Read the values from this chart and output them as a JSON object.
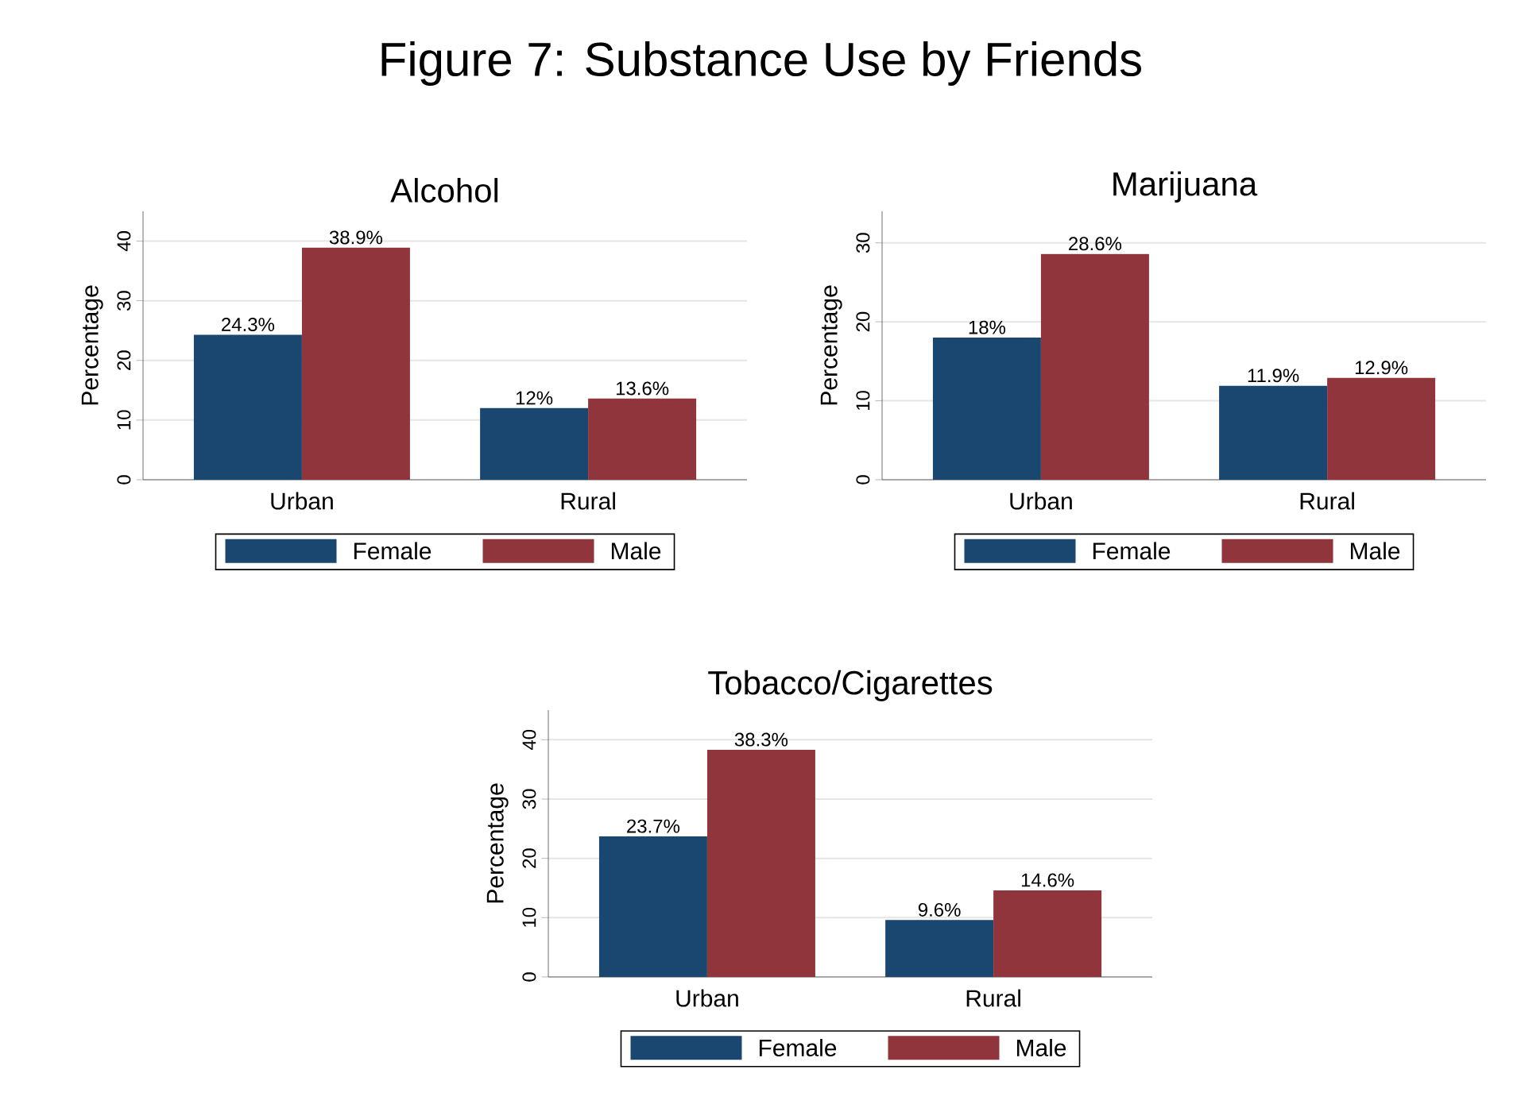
{
  "chart_data": [
    {
      "type": "other",
      "title": "Figure 7: Substance Use by Friends"
    },
    {
      "type": "bar",
      "title": "Alcohol",
      "ylabel": "Percentage",
      "categories": [
        "Urban",
        "Rural"
      ],
      "series": [
        {
          "name": "Female",
          "color": "#1a476f",
          "values": [
            24.3,
            12
          ],
          "value_labels": [
            "24.3%",
            "12%"
          ]
        },
        {
          "name": "Male",
          "color": "#90353b",
          "values": [
            38.9,
            13.6
          ],
          "value_labels": [
            "38.9%",
            "13.6%"
          ]
        }
      ],
      "ylim": [
        0,
        45
      ],
      "yticks": [
        0,
        10,
        20,
        30,
        40
      ],
      "grid": "y",
      "legend": "bottom"
    },
    {
      "type": "bar",
      "title": "Marijuana",
      "ylabel": "Percentage",
      "categories": [
        "Urban",
        "Rural"
      ],
      "series": [
        {
          "name": "Female",
          "color": "#1a476f",
          "values": [
            18,
            11.9
          ],
          "value_labels": [
            "18%",
            "11.9%"
          ]
        },
        {
          "name": "Male",
          "color": "#90353b",
          "values": [
            28.6,
            12.9
          ],
          "value_labels": [
            "28.6%",
            "12.9%"
          ]
        }
      ],
      "ylim": [
        0,
        34
      ],
      "yticks": [
        0,
        10,
        20,
        30
      ],
      "grid": "y",
      "legend": "bottom"
    },
    {
      "type": "bar",
      "title": "Tobacco/Cigarettes",
      "ylabel": "Percentage",
      "categories": [
        "Urban",
        "Rural"
      ],
      "series": [
        {
          "name": "Female",
          "color": "#1a476f",
          "values": [
            23.7,
            9.6
          ],
          "value_labels": [
            "23.7%",
            "9.6%"
          ]
        },
        {
          "name": "Male",
          "color": "#90353b",
          "values": [
            38.3,
            14.6
          ],
          "value_labels": [
            "38.3%",
            "14.6%"
          ]
        }
      ],
      "ylim": [
        0,
        45
      ],
      "yticks": [
        0,
        10,
        20,
        30,
        40
      ],
      "grid": "y",
      "legend": "bottom"
    }
  ]
}
